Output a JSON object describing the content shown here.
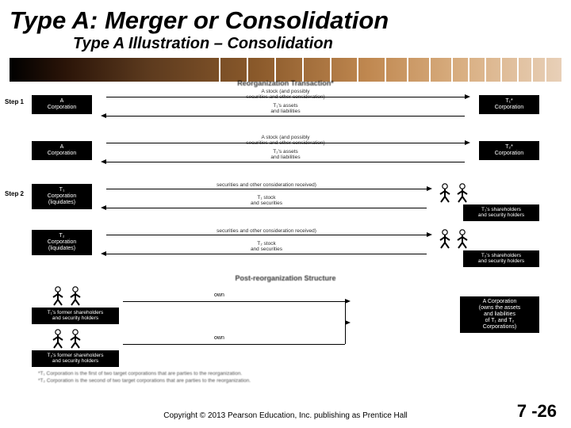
{
  "title": "Type A: Merger or Consolidation",
  "subtitle": "Type A Illustration – Consolidation",
  "gradient_bar": {
    "colors": [
      "#000000",
      "#2a1408",
      "#5c3a1e",
      "#8b5a2b",
      "#c08850",
      "#d9af82",
      "#e8d0b8"
    ],
    "tick_positions_pct": [
      38,
      43,
      48,
      53,
      58,
      63,
      68,
      72,
      76,
      80,
      83,
      86,
      89,
      92,
      94.5,
      97
    ]
  },
  "sections": {
    "reorg_title": "Reorganization Transaction*",
    "post_title": "Post-reorganization Structure"
  },
  "steps": {
    "step1": "Step 1",
    "step2": "Step 2"
  },
  "nodes": {
    "a_corp": "A\nCorporation",
    "t1_corp": "T₁*\nCorporation",
    "t2_corp": "T₂*\nCorporation",
    "t1_corp_liq": "T₁\nCorporation\n(liquidates)",
    "t2_corp_liq": "T₂\nCorporation\n(liquidates)",
    "t1_sh": "T₁'s shareholders\nand security holders",
    "t2_sh": "T₂'s shareholders\nand security holders",
    "t1_former": "T₁'s former shareholders\nand security holders",
    "t2_former": "T₂'s former shareholders\nand security holders",
    "a_corp_post": "A Corporation\n(owns the assets\nand liabilities\nof T₁ and T₂\nCorporations)"
  },
  "arrows": {
    "stock_consid": "A stock (and possibly\nsecurities and other consideration)",
    "t1_assets": "T₁'s assets\nand liabilities",
    "t2_assets": "T₂'s assets\nand liabilities",
    "sec_received": "securities and other consideration received)",
    "t1_stock_sec": "T₁ stock\nand securities",
    "t2_stock_sec": "T₂ stock\nand securities"
  },
  "own_label": "own",
  "footnotes": {
    "f1": "*T₁ Corporation is the first of two target corporations that are parties to the reorganization.",
    "f2": "*T₂ Corporation is the second of two target corporations that are parties to the reorganization."
  },
  "copyright": "Copyright © 2013 Pearson Education, Inc. publishing as Prentice Hall",
  "page_number": "7 -26",
  "colors": {
    "node_bg": "#000000",
    "node_fg": "#ffffff",
    "text": "#000000"
  }
}
